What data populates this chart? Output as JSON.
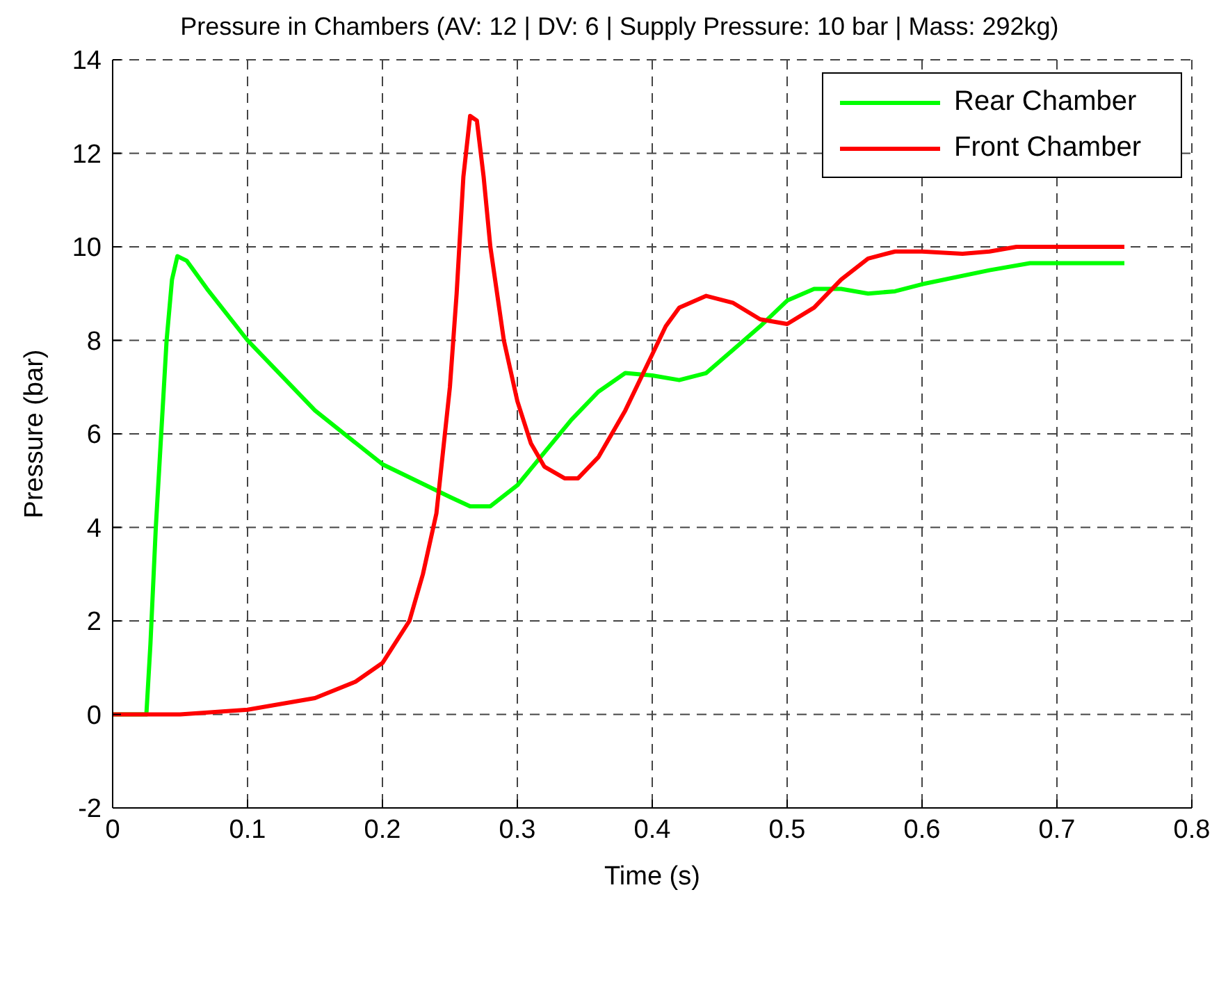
{
  "chart_data": {
    "type": "line",
    "title": "Pressure in Chambers (AV: 12 | DV: 6 | Supply Pressure: 10 bar | Mass: 292kg)",
    "xlabel": "Time (s)",
    "ylabel": "Pressure (bar)",
    "xlim": [
      0,
      0.8
    ],
    "xticks": [
      0,
      0.1,
      0.2,
      0.3,
      0.4,
      0.5,
      0.6,
      0.7,
      0.8
    ],
    "ylim": [
      -2,
      14
    ],
    "yticks": [
      -2,
      0,
      2,
      4,
      6,
      8,
      10,
      12,
      14
    ],
    "grid": true,
    "legend": "top right",
    "marker": "none",
    "line_style": "solid",
    "series": [
      {
        "name": "Rear Chamber",
        "color": "#00ff00",
        "x": [
          0,
          0.025,
          0.028,
          0.032,
          0.036,
          0.04,
          0.044,
          0.048,
          0.055,
          0.07,
          0.1,
          0.15,
          0.2,
          0.25,
          0.265,
          0.28,
          0.3,
          0.32,
          0.34,
          0.36,
          0.38,
          0.4,
          0.42,
          0.44,
          0.46,
          0.48,
          0.5,
          0.52,
          0.54,
          0.56,
          0.58,
          0.6,
          0.65,
          0.68,
          0.75
        ],
        "values": [
          0,
          0,
          1.5,
          4,
          6,
          8,
          9.3,
          9.8,
          9.7,
          9.1,
          8.0,
          6.5,
          5.35,
          4.65,
          4.45,
          4.45,
          4.9,
          5.6,
          6.3,
          6.9,
          7.3,
          7.25,
          7.15,
          7.3,
          7.8,
          8.3,
          8.85,
          9.1,
          9.1,
          9.0,
          9.05,
          9.2,
          9.5,
          9.65,
          9.65
        ]
      },
      {
        "name": "Front Chamber",
        "color": "#ff0000",
        "x": [
          0,
          0.05,
          0.1,
          0.15,
          0.18,
          0.2,
          0.22,
          0.23,
          0.24,
          0.25,
          0.255,
          0.26,
          0.265,
          0.27,
          0.275,
          0.28,
          0.29,
          0.3,
          0.31,
          0.32,
          0.335,
          0.345,
          0.36,
          0.38,
          0.4,
          0.41,
          0.42,
          0.44,
          0.46,
          0.48,
          0.5,
          0.52,
          0.54,
          0.56,
          0.58,
          0.6,
          0.63,
          0.65,
          0.67,
          0.75
        ],
        "values": [
          0,
          0,
          0.1,
          0.35,
          0.7,
          1.1,
          2.0,
          3.0,
          4.3,
          7.0,
          9,
          11.5,
          12.8,
          12.7,
          11.5,
          10.0,
          8.0,
          6.7,
          5.8,
          5.3,
          5.05,
          5.05,
          5.5,
          6.5,
          7.7,
          8.3,
          8.7,
          8.95,
          8.8,
          8.45,
          8.35,
          8.7,
          9.3,
          9.75,
          9.9,
          9.9,
          9.85,
          9.9,
          10.0,
          10.0
        ]
      }
    ]
  }
}
